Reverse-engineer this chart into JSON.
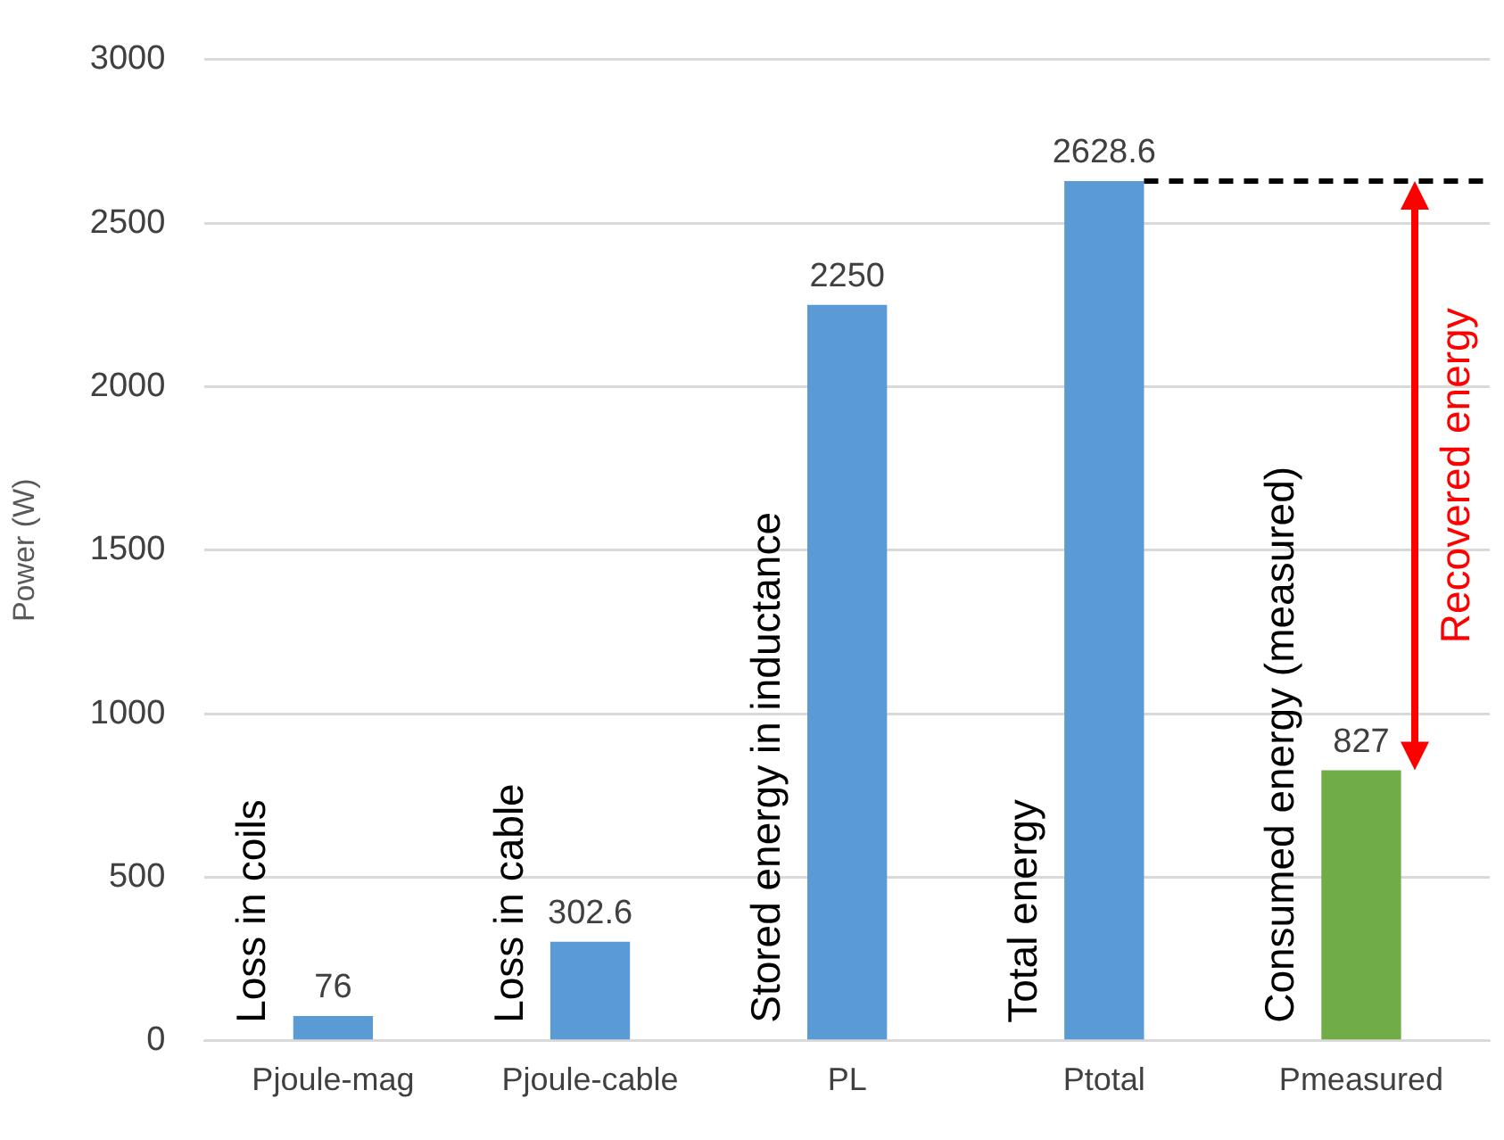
{
  "chart_data": {
    "type": "bar",
    "ylabel": "Power (W)",
    "categories": [
      "Pjoule-mag",
      "Pjoule-cable",
      "PL",
      "Ptotal",
      "Pmeasured"
    ],
    "values": [
      76,
      302.6,
      2250,
      2628.6,
      827
    ],
    "colors": [
      "#5b9bd5",
      "#5b9bd5",
      "#5b9bd5",
      "#5b9bd5",
      "#70ad47"
    ],
    "ylim": [
      0,
      3000
    ],
    "yticks": [
      0,
      500,
      1000,
      1500,
      2000,
      2500,
      3000
    ],
    "grid": "y",
    "legend": false,
    "data_labels": true,
    "ref_lines": [
      {
        "axis": "y",
        "value": 2628.6,
        "color": "#000000",
        "line_style": "dashed"
      }
    ],
    "annotations": [
      {
        "text": "Loss in coils",
        "x": "Pjoule-mag",
        "y": 0
      },
      {
        "text": "Loss in cable",
        "x": "Pjoule-cable",
        "y": 0
      },
      {
        "text": "Stored energy in inductance",
        "x": "PL",
        "y": 0
      },
      {
        "text": "Total energy",
        "x": "Ptotal",
        "y": 0
      },
      {
        "text": "Consumed energy (measured)",
        "x": "Pmeasured",
        "y": 0
      },
      "Recovered energy"
    ]
  }
}
